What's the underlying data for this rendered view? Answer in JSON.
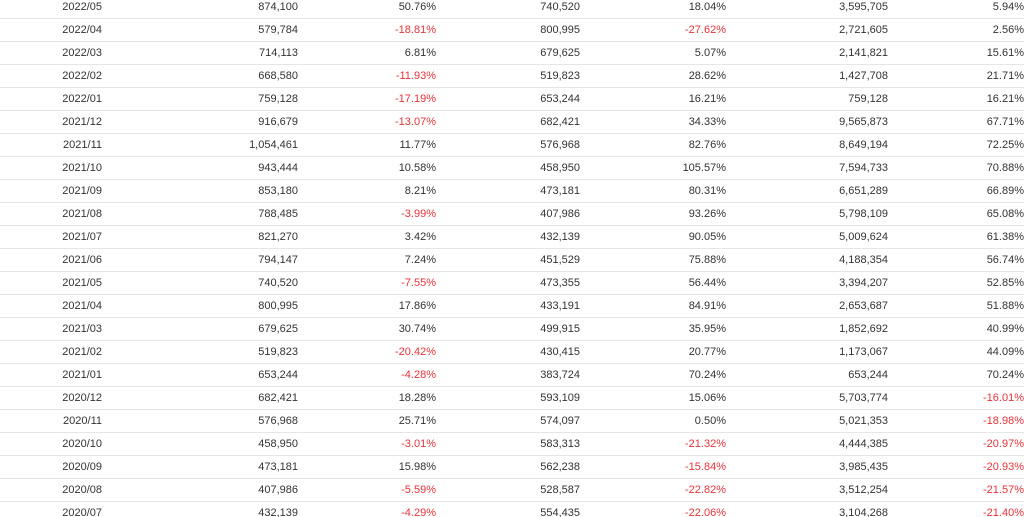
{
  "colors": {
    "negative": "#e8333b",
    "text": "#333333",
    "row_border": "#e6e6e6"
  },
  "rows": [
    [
      "2022/05",
      "874,100",
      "50.76%",
      "740,520",
      "18.04%",
      "3,595,705",
      "5.94%"
    ],
    [
      "2022/04",
      "579,784",
      "-18.81%",
      "800,995",
      "-27.62%",
      "2,721,605",
      "2.56%"
    ],
    [
      "2022/03",
      "714,113",
      "6.81%",
      "679,625",
      "5.07%",
      "2,141,821",
      "15.61%"
    ],
    [
      "2022/02",
      "668,580",
      "-11.93%",
      "519,823",
      "28.62%",
      "1,427,708",
      "21.71%"
    ],
    [
      "2022/01",
      "759,128",
      "-17.19%",
      "653,244",
      "16.21%",
      "759,128",
      "16.21%"
    ],
    [
      "2021/12",
      "916,679",
      "-13.07%",
      "682,421",
      "34.33%",
      "9,565,873",
      "67.71%"
    ],
    [
      "2021/11",
      "1,054,461",
      "11.77%",
      "576,968",
      "82.76%",
      "8,649,194",
      "72.25%"
    ],
    [
      "2021/10",
      "943,444",
      "10.58%",
      "458,950",
      "105.57%",
      "7,594,733",
      "70.88%"
    ],
    [
      "2021/09",
      "853,180",
      "8.21%",
      "473,181",
      "80.31%",
      "6,651,289",
      "66.89%"
    ],
    [
      "2021/08",
      "788,485",
      "-3.99%",
      "407,986",
      "93.26%",
      "5,798,109",
      "65.08%"
    ],
    [
      "2021/07",
      "821,270",
      "3.42%",
      "432,139",
      "90.05%",
      "5,009,624",
      "61.38%"
    ],
    [
      "2021/06",
      "794,147",
      "7.24%",
      "451,529",
      "75.88%",
      "4,188,354",
      "56.74%"
    ],
    [
      "2021/05",
      "740,520",
      "-7.55%",
      "473,355",
      "56.44%",
      "3,394,207",
      "52.85%"
    ],
    [
      "2021/04",
      "800,995",
      "17.86%",
      "433,191",
      "84.91%",
      "2,653,687",
      "51.88%"
    ],
    [
      "2021/03",
      "679,625",
      "30.74%",
      "499,915",
      "35.95%",
      "1,852,692",
      "40.99%"
    ],
    [
      "2021/02",
      "519,823",
      "-20.42%",
      "430,415",
      "20.77%",
      "1,173,067",
      "44.09%"
    ],
    [
      "2021/01",
      "653,244",
      "-4.28%",
      "383,724",
      "70.24%",
      "653,244",
      "70.24%"
    ],
    [
      "2020/12",
      "682,421",
      "18.28%",
      "593,109",
      "15.06%",
      "5,703,774",
      "-16.01%"
    ],
    [
      "2020/11",
      "576,968",
      "25.71%",
      "574,097",
      "0.50%",
      "5,021,353",
      "-18.98%"
    ],
    [
      "2020/10",
      "458,950",
      "-3.01%",
      "583,313",
      "-21.32%",
      "4,444,385",
      "-20.97%"
    ],
    [
      "2020/09",
      "473,181",
      "15.98%",
      "562,238",
      "-15.84%",
      "3,985,435",
      "-20.93%"
    ],
    [
      "2020/08",
      "407,986",
      "-5.59%",
      "528,587",
      "-22.82%",
      "3,512,254",
      "-21.57%"
    ],
    [
      "2020/07",
      "432,139",
      "-4.29%",
      "554,435",
      "-22.06%",
      "3,104,268",
      "-21.40%"
    ]
  ]
}
